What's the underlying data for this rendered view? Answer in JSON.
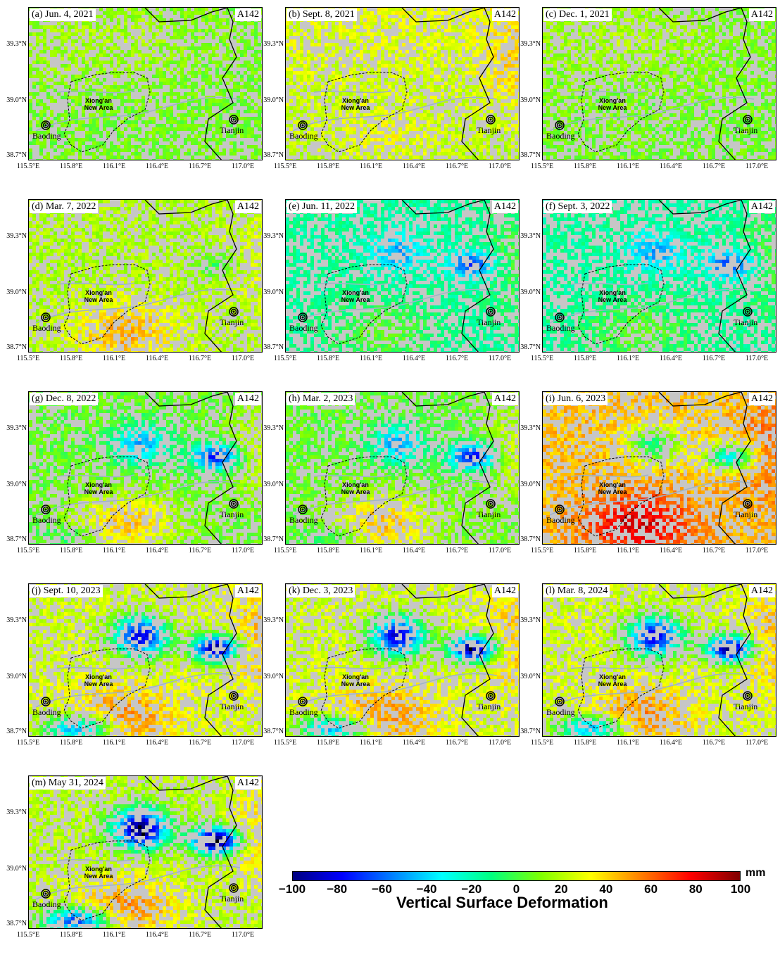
{
  "figure": {
    "track": "A142",
    "panels": [
      {
        "label": "(a) Jun. 4, 2021",
        "pattern": "stable"
      },
      {
        "label": "(b) Sept. 8, 2021",
        "pattern": "uplift_wide"
      },
      {
        "label": "(c) Dec. 1, 2021",
        "pattern": "stable"
      },
      {
        "label": "(d) Mar. 7, 2022",
        "pattern": "uplift_south"
      },
      {
        "label": "(e) Jun. 11, 2022",
        "pattern": "subsidence_mild"
      },
      {
        "label": "(f) Sept. 3, 2022",
        "pattern": "subsidence_mild"
      },
      {
        "label": "(g) Dec. 8, 2022",
        "pattern": "subsidence_medium"
      },
      {
        "label": "(h) Mar. 2, 2023",
        "pattern": "subsidence_medium"
      },
      {
        "label": "(i) Jun. 6, 2023",
        "pattern": "uplift_strong"
      },
      {
        "label": "(j) Sept. 10, 2023",
        "pattern": "subsidence_strong"
      },
      {
        "label": "(k) Dec. 3, 2023",
        "pattern": "subsidence_strong"
      },
      {
        "label": "(l) Mar. 8, 2024",
        "pattern": "subsidence_strong"
      },
      {
        "label": "(m) May 31, 2024",
        "pattern": "subsidence_max"
      }
    ],
    "lat_ticks": [
      "39.3°N",
      "39.0°N",
      "38.7°N"
    ],
    "lon_ticks": [
      "115.5°E",
      "115.8°E",
      "116.1°E",
      "116.4°E",
      "116.7°E",
      "117.0°E"
    ],
    "cities": {
      "baoding": "Baoding",
      "tianjin": "Tianjin"
    },
    "new_area": {
      "line1": "Xiong'an",
      "line2": "New Area"
    },
    "colorbar": {
      "title": "Vertical Surface Deformation",
      "unit": "mm",
      "min": -100,
      "max": 100,
      "ticks": [
        "−100",
        "−80",
        "−60",
        "−40",
        "−20",
        "0",
        "20",
        "40",
        "60",
        "80",
        "100"
      ],
      "colors": [
        "#00007f",
        "#0000ff",
        "#007fff",
        "#00ffff",
        "#00ff7f",
        "#7fff00",
        "#ffff00",
        "#ff7f00",
        "#ff0000",
        "#7f0000"
      ]
    },
    "colors": {
      "background_gray": "#c6c6c6",
      "river": "#9fb4c8",
      "border": "#000000"
    }
  }
}
